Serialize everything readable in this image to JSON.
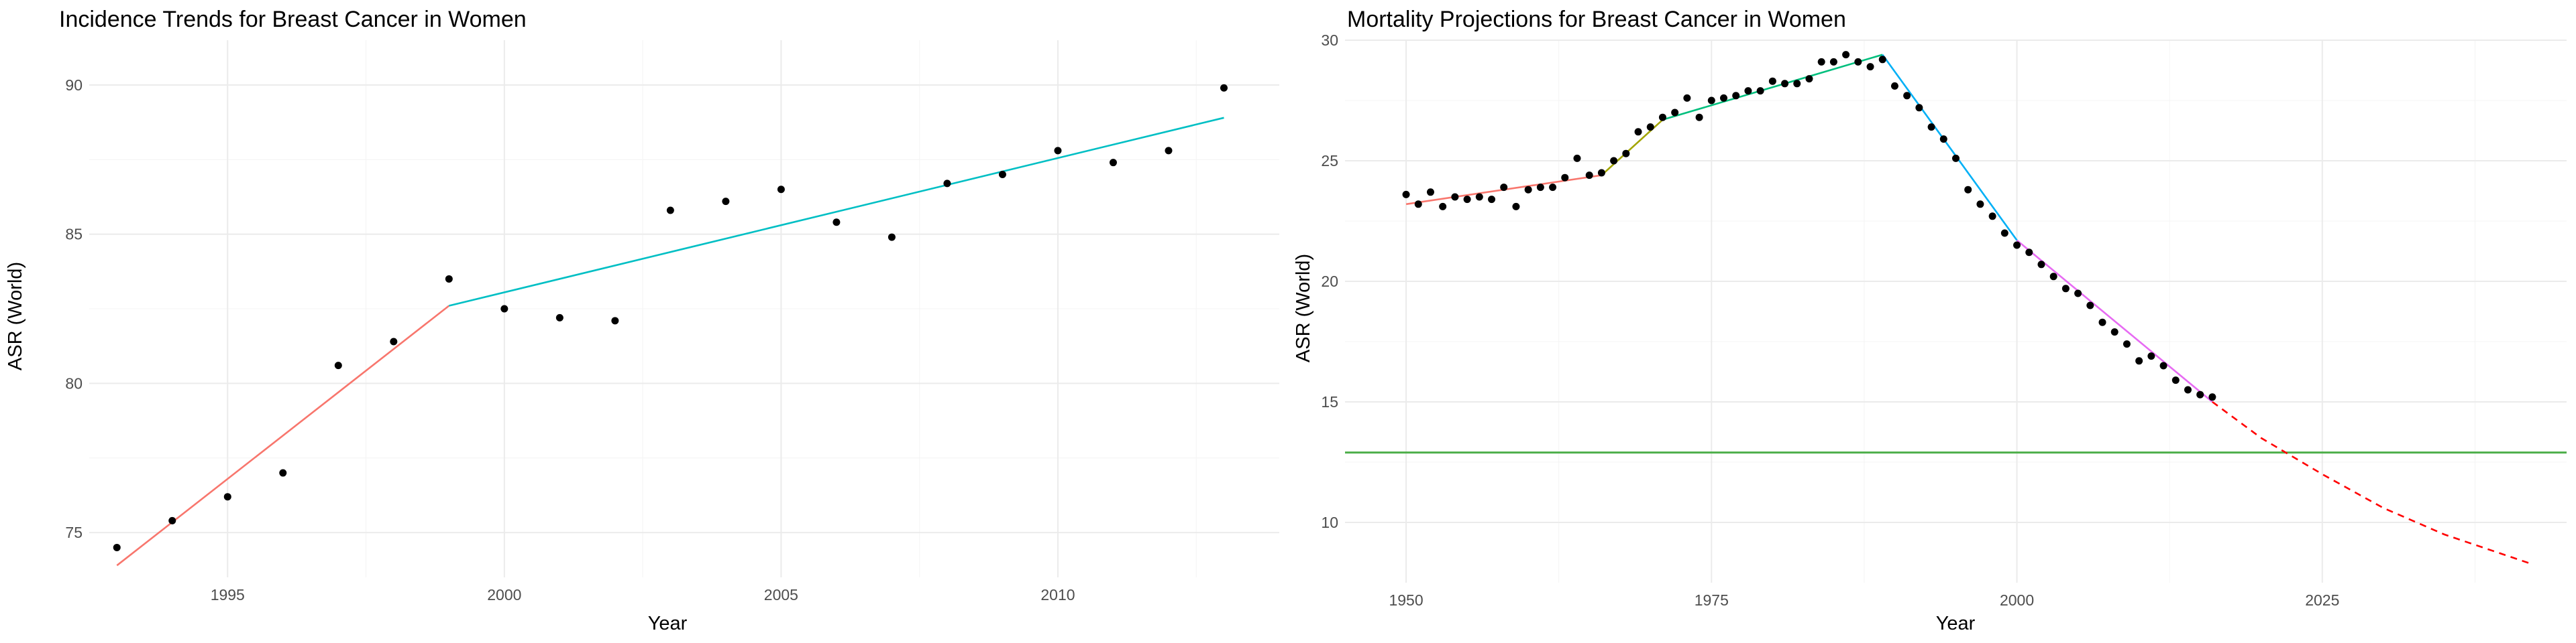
{
  "chart_data": [
    {
      "type": "scatter",
      "title": "Incidence Trends for Breast Cancer in Women",
      "xlabel": "Year",
      "ylabel": "ASR (World)",
      "xlim": [
        1992.5,
        2014
      ],
      "ylim": [
        73.5,
        91.5
      ],
      "xticks": [
        1995,
        2000,
        2005,
        2010
      ],
      "yticks": [
        75,
        80,
        85,
        90
      ],
      "grid": true,
      "legend": "none",
      "points": [
        {
          "x": 1993,
          "y": 74.5
        },
        {
          "x": 1994,
          "y": 75.4
        },
        {
          "x": 1995,
          "y": 76.2
        },
        {
          "x": 1996,
          "y": 77.0
        },
        {
          "x": 1997,
          "y": 80.6
        },
        {
          "x": 1998,
          "y": 81.4
        },
        {
          "x": 1999,
          "y": 83.5
        },
        {
          "x": 2000,
          "y": 82.5
        },
        {
          "x": 2001,
          "y": 82.2
        },
        {
          "x": 2002,
          "y": 82.1
        },
        {
          "x": 2003,
          "y": 85.8
        },
        {
          "x": 2004,
          "y": 86.1
        },
        {
          "x": 2005,
          "y": 86.5
        },
        {
          "x": 2006,
          "y": 85.4
        },
        {
          "x": 2007,
          "y": 84.9
        },
        {
          "x": 2008,
          "y": 86.7
        },
        {
          "x": 2009,
          "y": 87.0
        },
        {
          "x": 2010,
          "y": 87.8
        },
        {
          "x": 2011,
          "y": 87.4
        },
        {
          "x": 2012,
          "y": 87.8
        },
        {
          "x": 2013,
          "y": 89.9
        }
      ],
      "segments": [
        {
          "color": "#F8766D",
          "x": [
            1993,
            1999
          ],
          "y": [
            73.9,
            82.6
          ],
          "dash": false
        },
        {
          "color": "#00BFC4",
          "x": [
            1999,
            2013
          ],
          "y": [
            82.6,
            88.9
          ],
          "dash": false
        }
      ],
      "hlines": []
    },
    {
      "type": "scatter",
      "title": "Mortality Projections for Breast Cancer in Women",
      "xlabel": "Year",
      "ylabel": "ASR (World)",
      "xlim": [
        1945,
        2045
      ],
      "ylim": [
        7.5,
        30
      ],
      "xticks": [
        1950,
        1975,
        2000,
        2025
      ],
      "yticks": [
        10,
        15,
        20,
        25,
        30
      ],
      "grid": true,
      "legend": "none",
      "points": [
        {
          "x": 1950,
          "y": 23.6
        },
        {
          "x": 1951,
          "y": 23.2
        },
        {
          "x": 1952,
          "y": 23.7
        },
        {
          "x": 1953,
          "y": 23.1
        },
        {
          "x": 1954,
          "y": 23.5
        },
        {
          "x": 1955,
          "y": 23.4
        },
        {
          "x": 1956,
          "y": 23.5
        },
        {
          "x": 1957,
          "y": 23.4
        },
        {
          "x": 1958,
          "y": 23.9
        },
        {
          "x": 1959,
          "y": 23.1
        },
        {
          "x": 1960,
          "y": 23.8
        },
        {
          "x": 1961,
          "y": 23.9
        },
        {
          "x": 1962,
          "y": 23.9
        },
        {
          "x": 1963,
          "y": 24.3
        },
        {
          "x": 1964,
          "y": 25.1
        },
        {
          "x": 1965,
          "y": 24.4
        },
        {
          "x": 1966,
          "y": 24.5
        },
        {
          "x": 1967,
          "y": 25.0
        },
        {
          "x": 1968,
          "y": 25.3
        },
        {
          "x": 1969,
          "y": 26.2
        },
        {
          "x": 1970,
          "y": 26.4
        },
        {
          "x": 1971,
          "y": 26.8
        },
        {
          "x": 1972,
          "y": 27.0
        },
        {
          "x": 1973,
          "y": 27.6
        },
        {
          "x": 1974,
          "y": 26.8
        },
        {
          "x": 1975,
          "y": 27.5
        },
        {
          "x": 1976,
          "y": 27.6
        },
        {
          "x": 1977,
          "y": 27.7
        },
        {
          "x": 1978,
          "y": 27.9
        },
        {
          "x": 1979,
          "y": 27.9
        },
        {
          "x": 1980,
          "y": 28.3
        },
        {
          "x": 1981,
          "y": 28.2
        },
        {
          "x": 1982,
          "y": 28.2
        },
        {
          "x": 1983,
          "y": 28.4
        },
        {
          "x": 1984,
          "y": 29.1
        },
        {
          "x": 1985,
          "y": 29.1
        },
        {
          "x": 1986,
          "y": 29.4
        },
        {
          "x": 1987,
          "y": 29.1
        },
        {
          "x": 1988,
          "y": 28.9
        },
        {
          "x": 1989,
          "y": 29.2
        },
        {
          "x": 1990,
          "y": 28.1
        },
        {
          "x": 1991,
          "y": 27.7
        },
        {
          "x": 1992,
          "y": 27.2
        },
        {
          "x": 1993,
          "y": 26.4
        },
        {
          "x": 1994,
          "y": 25.9
        },
        {
          "x": 1995,
          "y": 25.1
        },
        {
          "x": 1996,
          "y": 23.8
        },
        {
          "x": 1997,
          "y": 23.2
        },
        {
          "x": 1998,
          "y": 22.7
        },
        {
          "x": 1999,
          "y": 22.0
        },
        {
          "x": 2000,
          "y": 21.5
        },
        {
          "x": 2001,
          "y": 21.2
        },
        {
          "x": 2002,
          "y": 20.7
        },
        {
          "x": 2003,
          "y": 20.2
        },
        {
          "x": 2004,
          "y": 19.7
        },
        {
          "x": 2005,
          "y": 19.5
        },
        {
          "x": 2006,
          "y": 19.0
        },
        {
          "x": 2007,
          "y": 18.3
        },
        {
          "x": 2008,
          "y": 17.9
        },
        {
          "x": 2009,
          "y": 17.4
        },
        {
          "x": 2010,
          "y": 16.7
        },
        {
          "x": 2011,
          "y": 16.9
        },
        {
          "x": 2012,
          "y": 16.5
        },
        {
          "x": 2013,
          "y": 15.9
        },
        {
          "x": 2014,
          "y": 15.5
        },
        {
          "x": 2015,
          "y": 15.3
        },
        {
          "x": 2016,
          "y": 15.2
        }
      ],
      "segments": [
        {
          "color": "#F8766D",
          "x": [
            1950,
            1966
          ],
          "y": [
            23.2,
            24.4
          ],
          "dash": false
        },
        {
          "color": "#A3A500",
          "x": [
            1966,
            1971
          ],
          "y": [
            24.4,
            26.7
          ],
          "dash": false
        },
        {
          "color": "#00BF7D",
          "x": [
            1971,
            1989
          ],
          "y": [
            26.7,
            29.4
          ],
          "dash": false
        },
        {
          "color": "#00B0F6",
          "x": [
            1989,
            2000
          ],
          "y": [
            29.4,
            21.7
          ],
          "dash": false
        },
        {
          "color": "#E76BF3",
          "x": [
            2000,
            2016
          ],
          "y": [
            21.7,
            15.0
          ],
          "dash": false
        },
        {
          "color": "#FF0000",
          "x": [
            2016,
            2020,
            2025,
            2030,
            2035,
            2042
          ],
          "y": [
            15.0,
            13.5,
            12.0,
            10.6,
            9.5,
            8.3
          ],
          "dash": true
        }
      ],
      "hlines": [
        {
          "color": "#4DAF4A",
          "y": 12.9
        }
      ]
    }
  ]
}
